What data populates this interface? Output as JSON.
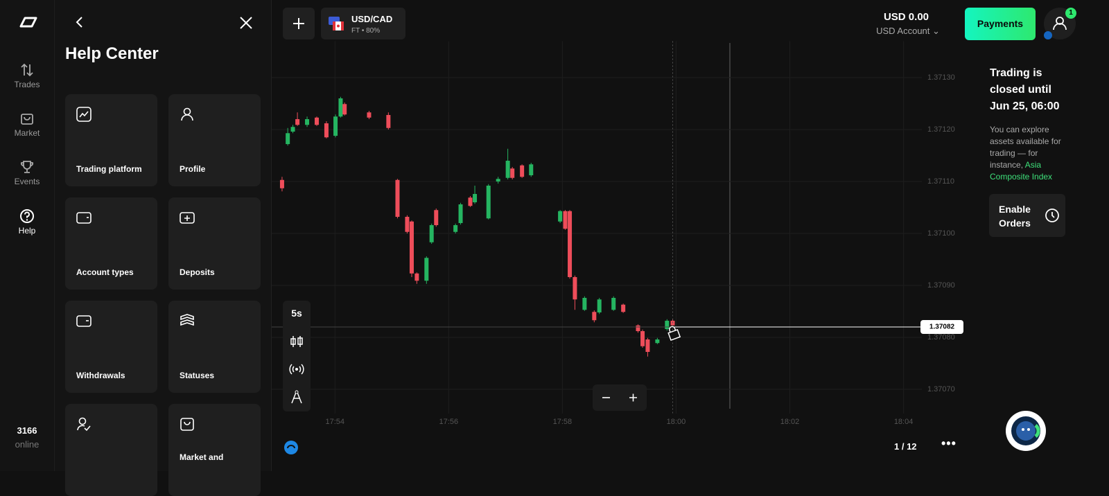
{
  "sidebar": {
    "nav": [
      "Trades",
      "Market",
      "Events",
      "Help"
    ],
    "online_count": "3166",
    "online_label": "online"
  },
  "help_center": {
    "title": "Help Center",
    "cards": [
      "Trading platform",
      "Profile",
      "Account types",
      "Deposits",
      "Withdrawals",
      "Statuses",
      "Market and"
    ]
  },
  "header": {
    "asset": "USD/CAD",
    "asset_info": "FT • 80%",
    "balance": "USD 0.00",
    "account": "USD Account",
    "payments": "Payments",
    "badge": "1"
  },
  "chart_data": {
    "type": "candlestick",
    "timeframe": "5s",
    "page": "1 / 12",
    "up_color": "#25b561",
    "down_color": "#ee4d5a",
    "grid": true,
    "x": [
      1073.07,
      1073.17,
      1073.26,
      1073.34,
      1073.51,
      1073.68,
      1073.85,
      1074.01,
      1074.1,
      1074.17,
      1074.6,
      1074.94,
      1075.1,
      1075.27,
      1075.35,
      1075.44,
      1075.61,
      1075.7,
      1075.78,
      1076.12,
      1076.21,
      1076.38,
      1076.46,
      1076.7,
      1076.87,
      1077.04,
      1077.12,
      1077.29,
      1077.45,
      1077.96,
      1078.05,
      1078.13,
      1078.22,
      1078.39,
      1078.56,
      1078.65,
      1078.9,
      1079.07,
      1079.33,
      1079.41,
      1079.5,
      1079.67,
      1079.84,
      1079.94
    ],
    "open": [
      1.371103,
      1.371172,
      1.371196,
      1.37122,
      1.371209,
      1.371223,
      1.371212,
      1.371188,
      1.371225,
      1.371249,
      1.371233,
      1.371228,
      1.371103,
      1.371032,
      1.371023,
      1.370923,
      1.370909,
      1.370983,
      1.371045,
      1.371003,
      1.37102,
      1.371069,
      1.37106,
      1.371029,
      1.3711,
      1.371107,
      1.371125,
      1.371131,
      1.371112,
      1.371023,
      1.371043,
      1.371043,
      1.370916,
      1.370853,
      1.370849,
      1.370848,
      1.370853,
      1.370863,
      1.370823,
      1.370812,
      1.370796,
      1.370789,
      1.370816,
      1.370832
    ],
    "high": [
      1.371109,
      1.371203,
      1.371209,
      1.371233,
      1.371225,
      1.371225,
      1.371216,
      1.371229,
      1.371263,
      1.371252,
      1.371236,
      1.371233,
      1.371105,
      1.371035,
      1.371025,
      1.370925,
      1.370956,
      1.371019,
      1.371048,
      1.371019,
      1.371059,
      1.371072,
      1.371092,
      1.371095,
      1.371109,
      1.371163,
      1.371128,
      1.371133,
      1.371136,
      1.371045,
      1.371045,
      1.371045,
      1.370919,
      1.370879,
      1.370852,
      1.370876,
      1.370879,
      1.370865,
      1.370825,
      1.370815,
      1.370799,
      1.370799,
      1.370835,
      1.370836
    ],
    "low": [
      1.371081,
      1.371169,
      1.371193,
      1.371207,
      1.371205,
      1.371207,
      1.371183,
      1.371185,
      1.371223,
      1.371227,
      1.37122,
      1.3712,
      1.371029,
      1.371,
      1.370916,
      1.370903,
      1.370903,
      1.37098,
      1.371013,
      1.371,
      1.371017,
      1.371051,
      1.371057,
      1.371027,
      1.371096,
      1.371104,
      1.371104,
      1.371107,
      1.371109,
      1.37102,
      1.371007,
      1.370913,
      1.370853,
      1.370851,
      1.370829,
      1.370845,
      1.370851,
      1.370847,
      1.370809,
      1.37078,
      1.370763,
      1.370787,
      1.370813,
      1.37082
    ],
    "close": [
      1.371087,
      1.371193,
      1.371205,
      1.371209,
      1.37122,
      1.371209,
      1.371185,
      1.371225,
      1.37126,
      1.371229,
      1.371223,
      1.371203,
      1.371032,
      1.371003,
      1.370923,
      1.370909,
      1.370953,
      1.371016,
      1.371016,
      1.371016,
      1.371056,
      1.371053,
      1.371076,
      1.371092,
      1.371105,
      1.37114,
      1.371107,
      1.371109,
      1.371133,
      1.371043,
      1.371009,
      1.370916,
      1.370873,
      1.370876,
      1.370833,
      1.370873,
      1.370876,
      1.370849,
      1.370812,
      1.370783,
      1.370772,
      1.370796,
      1.370832,
      1.370823
    ],
    "xlim": [
      1072.9,
      1084.2
    ],
    "xticks": [
      {
        "value": 1074,
        "label": "17:54"
      },
      {
        "value": 1076,
        "label": "17:56"
      },
      {
        "value": 1078,
        "label": "17:58"
      },
      {
        "value": 1080,
        "label": "18:00"
      },
      {
        "value": 1082,
        "label": "18:02"
      },
      {
        "value": 1084,
        "label": "18:04"
      }
    ],
    "ylim": [
      1.37066,
      1.37137
    ],
    "yticks": [
      {
        "value": 1.3707,
        "label": "1.37070"
      },
      {
        "value": 1.3708,
        "label": "1.37080"
      },
      {
        "value": 1.3709,
        "label": "1.37090"
      },
      {
        "value": 1.371,
        "label": "1.37100"
      },
      {
        "value": 1.3711,
        "label": "1.37110"
      },
      {
        "value": 1.3712,
        "label": "1.37120"
      },
      {
        "value": 1.3713,
        "label": "1.37130"
      }
    ],
    "current_price": {
      "value": 1.37082,
      "label": "1.37082"
    }
  },
  "trading_panel": {
    "title": "Trading is closed until Jun 25, 06:00",
    "description": "You can explore assets available for trading — for instance,",
    "link": "Asia Composite Index",
    "button": "Enable Orders"
  }
}
